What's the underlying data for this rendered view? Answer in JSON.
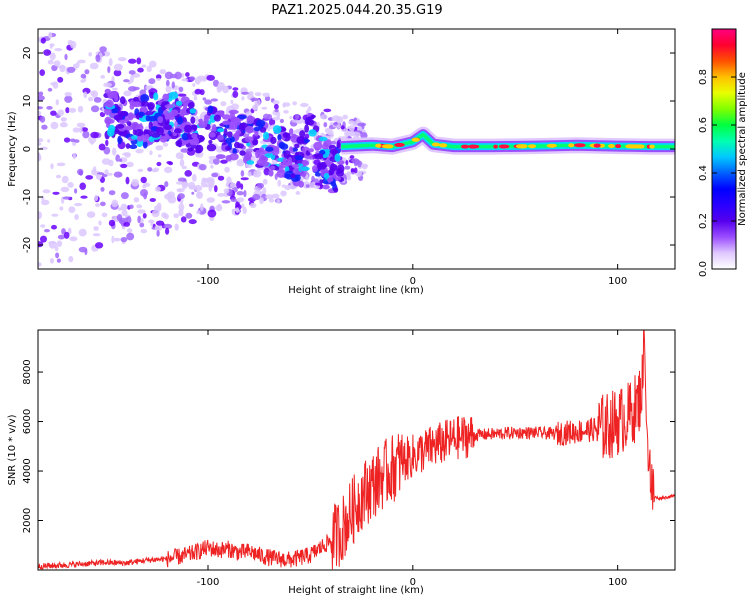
{
  "figure_title": "PAZ1.2025.044.20.35.G19",
  "chart_data": [
    {
      "type": "heatmap",
      "title": "",
      "xlabel": "Height of straight line (km)",
      "ylabel": "Frequency (Hz)",
      "xlim": [
        -183,
        128
      ],
      "ylim": [
        -25,
        25
      ],
      "xticks": [
        -100,
        0,
        100
      ],
      "yticks": [
        -20,
        -10,
        0,
        10,
        20
      ],
      "colorbar": {
        "label": "Normalized spectral amplitude",
        "range": [
          0,
          1
        ],
        "ticks": [
          "0.0",
          "0.2",
          "0.4",
          "0.6",
          "0.8"
        ],
        "colors": [
          "#ffffff",
          "#e0c8ff",
          "#9a4dff",
          "#5500ee",
          "#2a00ff",
          "#0000ff",
          "#0060ff",
          "#00c8ff",
          "#00ffb0",
          "#00ff40",
          "#80ff00",
          "#e8ff00",
          "#ffc000",
          "#ff5000",
          "#ff0030",
          "#ff0080"
        ]
      },
      "ridge": {
        "description_free_points": [
          [
            -35,
            0.5
          ],
          [
            -20,
            0.8
          ],
          [
            -10,
            0.5
          ],
          [
            0,
            1.5
          ],
          [
            5,
            3.0
          ],
          [
            10,
            1.0
          ],
          [
            20,
            0.5
          ],
          [
            40,
            0.5
          ],
          [
            60,
            0.6
          ],
          [
            80,
            0.8
          ],
          [
            100,
            0.6
          ],
          [
            115,
            0.5
          ],
          [
            128,
            0.5
          ]
        ]
      },
      "scatter_band": {
        "points": [
          [
            -150,
            8
          ],
          [
            -140,
            5
          ],
          [
            -130,
            6
          ],
          [
            -120,
            7
          ],
          [
            -110,
            5
          ],
          [
            -100,
            4
          ],
          [
            -90,
            3
          ],
          [
            -80,
            2
          ],
          [
            -70,
            0
          ],
          [
            -60,
            -1
          ],
          [
            -55,
            -3
          ],
          [
            -50,
            3
          ],
          [
            -45,
            -2
          ],
          [
            -40,
            -4
          ]
        ]
      }
    },
    {
      "type": "line",
      "title": "",
      "xlabel": "Height of straight line (km)",
      "ylabel": "SNR (10 * v/v)",
      "xlim": [
        -183,
        128
      ],
      "ylim": [
        0,
        9700
      ],
      "xticks": [
        -100,
        0,
        100
      ],
      "yticks": [
        2000,
        4000,
        6000,
        8000
      ],
      "color": "#ee2222",
      "series": [
        {
          "x": [
            -183,
            -170,
            -160,
            -150,
            -140,
            -130,
            -120,
            -110,
            -100,
            -95,
            -90,
            -85,
            -80,
            -75,
            -70,
            -65,
            -60,
            -55,
            -50,
            -45,
            -40,
            -35,
            -30,
            -25,
            -20,
            -15,
            -10,
            -5,
            0,
            5,
            10,
            15,
            20,
            25,
            30,
            40,
            50,
            60,
            70,
            80,
            90,
            95,
            100,
            105,
            108,
            110,
            112,
            113,
            114,
            115,
            116,
            117,
            118,
            120,
            125,
            128
          ],
          "y": [
            150,
            200,
            250,
            300,
            280,
            400,
            450,
            600,
            900,
            800,
            850,
            700,
            750,
            600,
            500,
            450,
            400,
            500,
            600,
            900,
            1200,
            1600,
            2300,
            3000,
            3400,
            3800,
            4100,
            4400,
            4600,
            4800,
            5000,
            5150,
            5300,
            5400,
            5450,
            5500,
            5550,
            5550,
            5500,
            5600,
            5700,
            5800,
            6000,
            6200,
            6500,
            6700,
            7500,
            9700,
            6000,
            5200,
            4000,
            3000,
            2950,
            2900,
            2950,
            3000
          ]
        }
      ]
    }
  ]
}
